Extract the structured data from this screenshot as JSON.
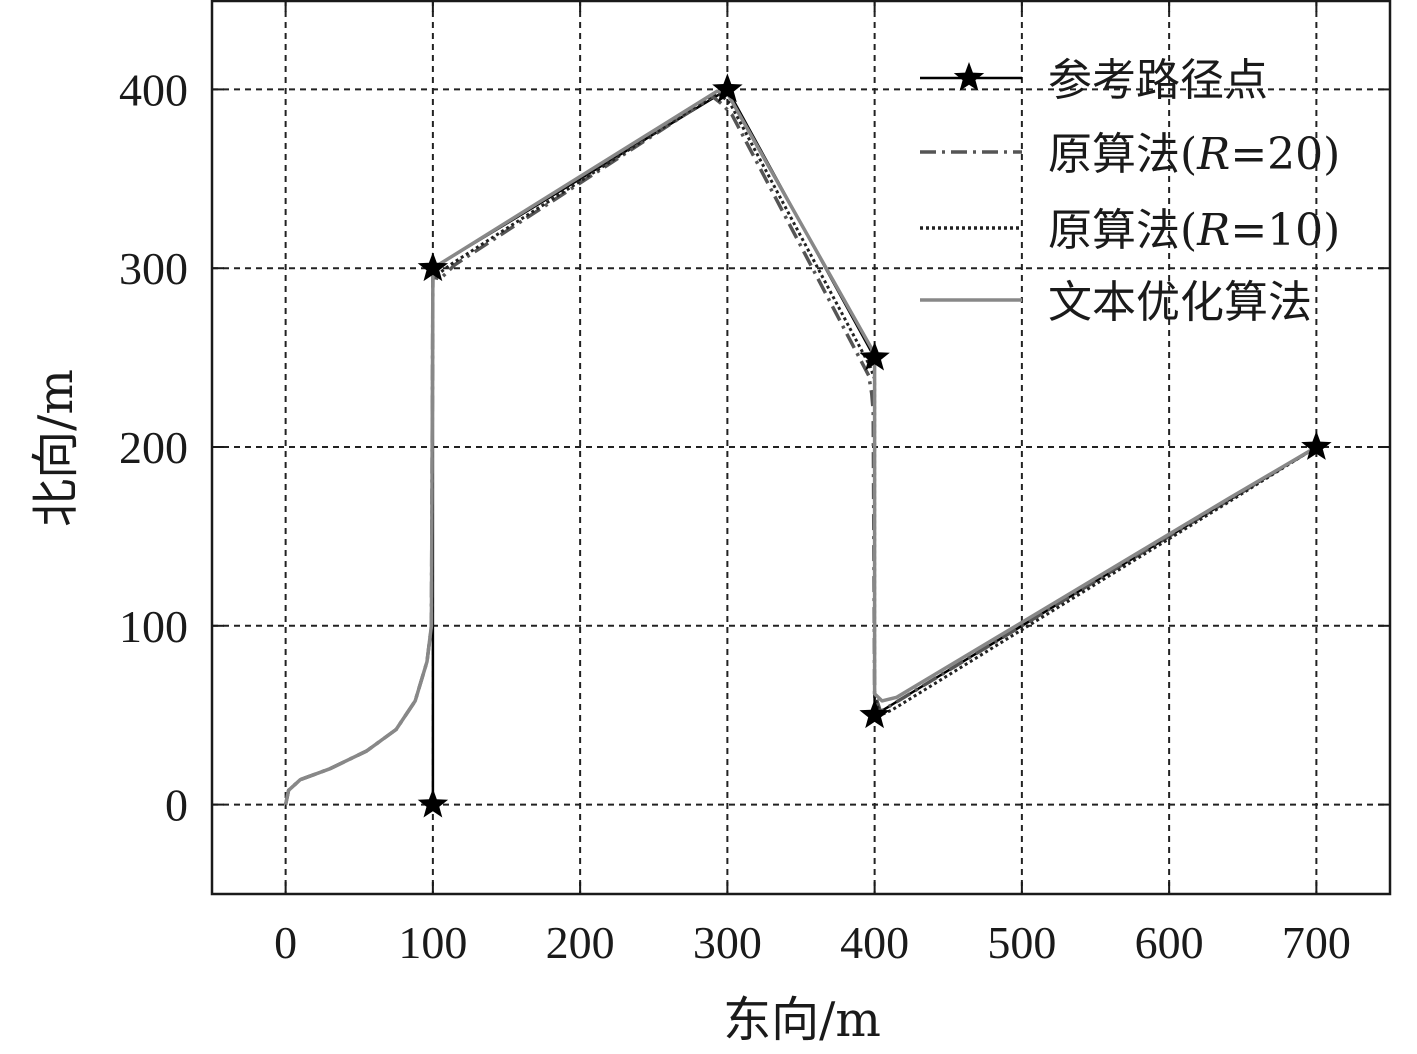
{
  "chart_data": {
    "type": "line",
    "xlabel": "东向/m",
    "ylabel": "北向/m",
    "xlim": [
      -50,
      750
    ],
    "ylim": [
      -50,
      450
    ],
    "xticks": [
      0,
      100,
      200,
      300,
      400,
      500,
      600,
      700
    ],
    "yticks": [
      0,
      100,
      200,
      300,
      400
    ],
    "grid": true,
    "legend_position": "top-right",
    "series": [
      {
        "name": "参考路径点",
        "style": "solid-star",
        "color": "#000000",
        "points": [
          [
            100,
            0
          ],
          [
            100,
            300
          ],
          [
            300,
            400
          ],
          [
            400,
            250
          ],
          [
            400,
            50
          ],
          [
            700,
            200
          ]
        ]
      },
      {
        "name": "原算法(R=20)",
        "style": "dashdot",
        "color": "#555555",
        "points": [
          [
            0,
            0
          ],
          [
            2,
            8
          ],
          [
            10,
            14
          ],
          [
            30,
            20
          ],
          [
            55,
            30
          ],
          [
            75,
            42
          ],
          [
            88,
            58
          ],
          [
            96,
            80
          ],
          [
            99,
            100
          ],
          [
            100,
            295
          ],
          [
            105,
            294
          ],
          [
            115,
            302
          ],
          [
            290,
            396
          ],
          [
            296,
            392
          ],
          [
            303,
            386
          ],
          [
            396,
            240
          ],
          [
            398,
            230
          ],
          [
            399,
            220
          ],
          [
            400,
            62
          ],
          [
            404,
            52
          ],
          [
            410,
            55
          ],
          [
            640,
            170
          ],
          [
            700,
            200
          ]
        ]
      },
      {
        "name": "原算法(R=10)",
        "style": "dotted",
        "color": "#222222",
        "points": [
          [
            0,
            0
          ],
          [
            2,
            8
          ],
          [
            10,
            14
          ],
          [
            30,
            20
          ],
          [
            55,
            30
          ],
          [
            75,
            42
          ],
          [
            88,
            58
          ],
          [
            96,
            80
          ],
          [
            99,
            100
          ],
          [
            100,
            297
          ],
          [
            104,
            297
          ],
          [
            112,
            302
          ],
          [
            293,
            398
          ],
          [
            298,
            395
          ],
          [
            302,
            392
          ],
          [
            397,
            245
          ],
          [
            400,
            238
          ],
          [
            400,
            60
          ],
          [
            404,
            50
          ],
          [
            412,
            53
          ],
          [
            640,
            169
          ],
          [
            700,
            200
          ]
        ]
      },
      {
        "name": "文本优化算法",
        "style": "solid",
        "color": "#888888",
        "points": [
          [
            0,
            0
          ],
          [
            2,
            8
          ],
          [
            10,
            14
          ],
          [
            30,
            20
          ],
          [
            55,
            30
          ],
          [
            75,
            42
          ],
          [
            88,
            58
          ],
          [
            96,
            80
          ],
          [
            99,
            100
          ],
          [
            100,
            300
          ],
          [
            106,
            303
          ],
          [
            293,
            399
          ],
          [
            300,
            398
          ],
          [
            304,
            392
          ],
          [
            398,
            255
          ],
          [
            400,
            245
          ],
          [
            400,
            62
          ],
          [
            405,
            58
          ],
          [
            415,
            60
          ],
          [
            640,
            171
          ],
          [
            700,
            200
          ]
        ]
      }
    ]
  },
  "legend": {
    "items": [
      {
        "label": "参考路径点"
      },
      {
        "label_pre": "原算法(",
        "label_ital": "R",
        "label_post": "=20)"
      },
      {
        "label_pre": "原算法(",
        "label_ital": "R",
        "label_post": "=10)"
      },
      {
        "label": "文本优化算法"
      }
    ]
  }
}
